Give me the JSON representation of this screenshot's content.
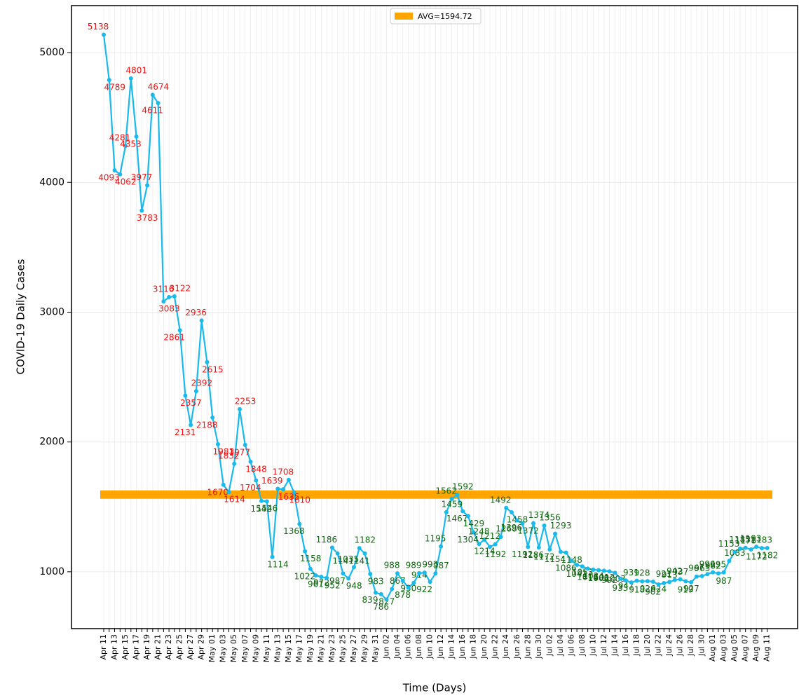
{
  "chart_data": {
    "type": "line",
    "y_label": "COVID-19 Daily Cases",
    "x_label": "Time (Days)",
    "categories": [
      "Apr 11",
      null,
      "Apr 13",
      null,
      "Apr 15",
      null,
      "Apr 17",
      null,
      "Apr 19",
      null,
      "Apr 21",
      null,
      "Apr 23",
      null,
      "Apr 25",
      null,
      "Apr 27",
      null,
      "Apr 29",
      null,
      "May 01",
      null,
      "May 03",
      null,
      "May 05",
      null,
      "May 07",
      null,
      "May 09",
      null,
      "May 11",
      null,
      "May 13",
      null,
      "May 15",
      null,
      "May 17",
      null,
      "May 19",
      null,
      "May 21",
      null,
      "May 23",
      null,
      "May 25",
      null,
      "May 27",
      null,
      "May 29",
      null,
      "May 31",
      null,
      "Jun 02",
      null,
      "Jun 04",
      null,
      "Jun 06",
      null,
      "Jun 08",
      null,
      "Jun 10",
      null,
      "Jun 12",
      null,
      "Jun 14",
      null,
      "Jun 16",
      null,
      "Jun 18",
      null,
      "Jun 20",
      null,
      "Jun 22",
      null,
      "Jun 24",
      null,
      "Jun 26",
      null,
      "Jun 28",
      null,
      "Jun 30",
      null,
      "Jul 02",
      null,
      "Jul 04",
      null,
      "Jul 06",
      null,
      "Jul 08",
      null,
      "Jul 10",
      null,
      "Jul 12",
      null,
      "Jul 14",
      null,
      "Jul 16",
      null,
      "Jul 18",
      null,
      "Jul 20",
      null,
      "Jul 22",
      null,
      "Jul 24",
      null,
      "Jul 26",
      null,
      "Jul 28",
      null,
      "Jul 30",
      null,
      "Aug 01",
      null,
      "Aug 03",
      null,
      "Aug 05",
      null,
      "Aug 07",
      null,
      "Aug 09",
      null,
      "Aug 11"
    ],
    "series": [
      {
        "color": "#19b9ec",
        "values": [
          5138,
          4789,
          4093,
          4062,
          4281,
          4801,
          4353,
          3783,
          3977,
          4674,
          4611,
          3083,
          3116,
          3122,
          2861,
          2357,
          2131,
          2392,
          2936,
          2615,
          2188,
          1983,
          1670,
          1614,
          1832,
          2253,
          1977,
          1848,
          1704,
          1546,
          1542,
          1114,
          1639,
          1635,
          1708,
          1610,
          1368,
          1158,
          1022,
          972,
          961,
          952,
          1186,
          1141,
          987,
          948,
          1035,
          1182,
          1141,
          983,
          839,
          827,
          786,
          867,
          988,
          930,
          878,
          914,
          989,
          993,
          922,
          987,
          1195,
          1459,
          1562,
          1592,
          1467,
          1429,
          1304,
          1214,
          1248,
          1192,
          1212,
          1268,
          1492,
          1458,
          1396,
          1372,
          1192,
          1374,
          1186,
          1356,
          1172,
          1293,
          1154,
          1148,
          1086,
          1053,
          1041,
          1024,
          1016,
          1012,
          1008,
          1003,
          992,
          947,
          933,
          918,
          931,
          926,
          928,
          924,
          902,
          913,
          921,
          937,
          942,
          927,
          919,
          963,
          967,
          982,
          996,
          987,
          995,
          1083,
          1153,
          1178,
          1185,
          1172,
          1193,
          1182,
          1183
        ]
      }
    ],
    "average": {
      "value": 1594.72,
      "label": "AVG=1594.72",
      "color": "#ffa500"
    },
    "label_colors": {
      "above": "#ee1111",
      "below": "#116611"
    },
    "ylim": [
      562,
      5362
    ],
    "yticks": [
      1000,
      2000,
      3000,
      4000,
      5000
    ],
    "grid": true
  }
}
